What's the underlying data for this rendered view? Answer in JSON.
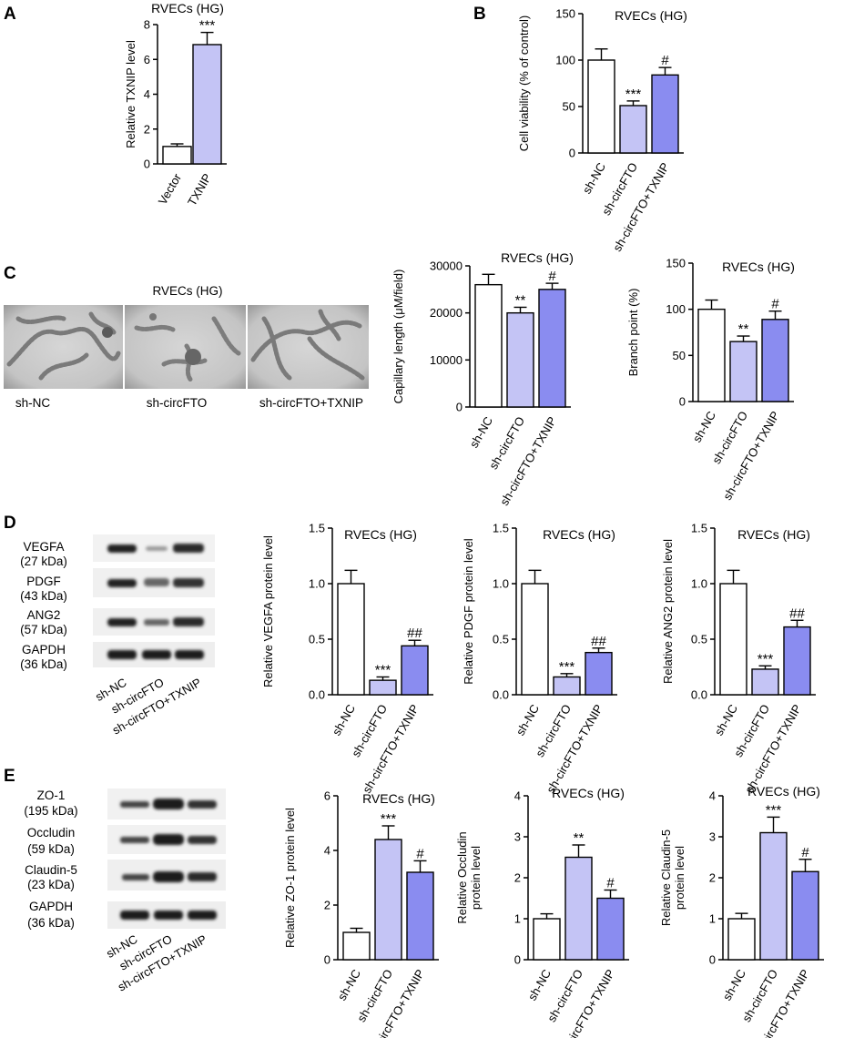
{
  "panel_labels": [
    "A",
    "B",
    "C",
    "D",
    "E"
  ],
  "colors": {
    "white_bar": "#ffffff",
    "light_bar": "#c4c4f5",
    "dark_bar": "#8a8cf0",
    "axis": "#000000"
  },
  "microscopy": {
    "title": "RVECs (HG)",
    "captions": [
      "sh-NC",
      "sh-circFTO",
      "sh-circFTO+TXNIP"
    ]
  },
  "blots": {
    "D": {
      "rows": [
        {
          "name": "VEGFA",
          "mw": "(27 kDa)"
        },
        {
          "name": "PDGF",
          "mw": "(43 kDa)"
        },
        {
          "name": "ANG2",
          "mw": "(57 kDa)"
        },
        {
          "name": "GAPDH",
          "mw": "(36 kDa)"
        }
      ],
      "lanes": [
        "sh-NC",
        "sh-circFTO",
        "sh-circFTO+TXNIP"
      ]
    },
    "E": {
      "rows": [
        {
          "name": "ZO-1",
          "mw": "(195 kDa)"
        },
        {
          "name": "Occludin",
          "mw": "(59 kDa)"
        },
        {
          "name": "Claudin-5",
          "mw": "(23 kDa)"
        },
        {
          "name": "GAPDH",
          "mw": "(36 kDa)"
        }
      ],
      "lanes": [
        "sh-NC",
        "sh-circFTO",
        "sh-circFTO+TXNIP"
      ]
    }
  },
  "chart_data": [
    {
      "id": "A",
      "type": "bar",
      "title": "RVECs (HG)",
      "ylabel": [
        "Relative TXNIP level"
      ],
      "categories": [
        "Vector",
        "TXNIP"
      ],
      "values": [
        1.0,
        6.85
      ],
      "errors": [
        0.15,
        0.7
      ],
      "sig": [
        "",
        "***"
      ],
      "ylim": [
        0,
        8
      ],
      "yticks": [
        "0",
        "2",
        "4",
        "6",
        "8"
      ],
      "grid": false
    },
    {
      "id": "B",
      "type": "bar",
      "title": "RVECs (HG)",
      "ylabel": [
        "Cell viability (% of control)"
      ],
      "categories": [
        "sh-NC",
        "sh-circFTO",
        "sh-circFTO+TXNIP"
      ],
      "values": [
        100,
        51,
        84
      ],
      "errors": [
        12,
        5,
        8
      ],
      "sig": [
        "",
        "***",
        "#"
      ],
      "ylim": [
        0,
        150
      ],
      "yticks": [
        "0",
        "50",
        "100",
        "150"
      ],
      "grid": false
    },
    {
      "id": "C1",
      "type": "bar",
      "title": "RVECs (HG)",
      "ylabel": [
        "Capillary length (μM/field)"
      ],
      "categories": [
        "sh-NC",
        "sh-circFTO",
        "sh-circFTO+TXNIP"
      ],
      "values": [
        26000,
        20000,
        25000
      ],
      "errors": [
        2200,
        1200,
        1300
      ],
      "sig": [
        "",
        "**",
        "#"
      ],
      "ylim": [
        0,
        30000
      ],
      "yticks": [
        "0",
        "10000",
        "20000",
        "30000"
      ],
      "grid": false
    },
    {
      "id": "C2",
      "type": "bar",
      "title": "RVECs (HG)",
      "ylabel": [
        "Branch point (%)"
      ],
      "categories": [
        "sh-NC",
        "sh-circFTO",
        "sh-circFTO+TXNIP"
      ],
      "values": [
        100,
        65,
        89
      ],
      "errors": [
        10,
        6,
        9
      ],
      "sig": [
        "",
        "**",
        "#"
      ],
      "ylim": [
        0,
        150
      ],
      "yticks": [
        "0",
        "50",
        "100",
        "150"
      ],
      "grid": false
    },
    {
      "id": "D1",
      "type": "bar",
      "title": "RVECs (HG)",
      "ylabel": [
        "Relative VEGFA protein level"
      ],
      "categories": [
        "sh-NC",
        "sh-circFTO",
        "sh-circFTO+TXNIP"
      ],
      "values": [
        1.0,
        0.13,
        0.44
      ],
      "errors": [
        0.12,
        0.03,
        0.05
      ],
      "sig": [
        "",
        "***",
        "##"
      ],
      "ylim": [
        0,
        1.5
      ],
      "yticks": [
        "0.0",
        "0.5",
        "1.0",
        "1.5"
      ],
      "grid": false
    },
    {
      "id": "D2",
      "type": "bar",
      "title": "RVECs (HG)",
      "ylabel": [
        "Relative PDGF protein level"
      ],
      "categories": [
        "sh-NC",
        "sh-circFTO",
        "sh-circFTO+TXNIP"
      ],
      "values": [
        1.0,
        0.16,
        0.38
      ],
      "errors": [
        0.12,
        0.03,
        0.04
      ],
      "sig": [
        "",
        "***",
        "##"
      ],
      "ylim": [
        0,
        1.5
      ],
      "yticks": [
        "0.0",
        "0.5",
        "1.0",
        "1.5"
      ],
      "grid": false
    },
    {
      "id": "D3",
      "type": "bar",
      "title": "RVECs (HG)",
      "ylabel": [
        "Relative ANG2 protein level"
      ],
      "categories": [
        "sh-NC",
        "sh-circFTO",
        "sh-circFTO+TXNIP"
      ],
      "values": [
        1.0,
        0.23,
        0.61
      ],
      "errors": [
        0.12,
        0.03,
        0.06
      ],
      "sig": [
        "",
        "***",
        "##"
      ],
      "ylim": [
        0,
        1.5
      ],
      "yticks": [
        "0.0",
        "0.5",
        "1.0",
        "1.5"
      ],
      "grid": false
    },
    {
      "id": "E1",
      "type": "bar",
      "title": "RVECs (HG)",
      "ylabel": [
        "Relative ZO-1 protein level"
      ],
      "categories": [
        "sh-NC",
        "sh-circFTO",
        "sh-circFTO+TXNIP"
      ],
      "values": [
        1.0,
        4.4,
        3.2
      ],
      "errors": [
        0.15,
        0.5,
        0.42
      ],
      "sig": [
        "",
        "***",
        "#"
      ],
      "ylim": [
        0,
        6
      ],
      "yticks": [
        "0",
        "2",
        "4",
        "6"
      ],
      "grid": false
    },
    {
      "id": "E2",
      "type": "bar",
      "title": "RVECs (HG)",
      "ylabel": [
        "Relative Occludin",
        "protein level"
      ],
      "categories": [
        "sh-NC",
        "sh-circFTO",
        "sh-circFTO+TXNIP"
      ],
      "values": [
        1.0,
        2.5,
        1.5
      ],
      "errors": [
        0.12,
        0.3,
        0.2
      ],
      "sig": [
        "",
        "**",
        "#"
      ],
      "ylim": [
        0,
        4
      ],
      "yticks": [
        "0",
        "1",
        "2",
        "3",
        "4"
      ],
      "grid": false
    },
    {
      "id": "E3",
      "type": "bar",
      "title": "RVECs (HG)",
      "ylabel": [
        "Relative Claudin-5",
        "protein level"
      ],
      "categories": [
        "sh-NC",
        "sh-circFTO",
        "sh-circFTO+TXNIP"
      ],
      "values": [
        1.0,
        3.1,
        2.15
      ],
      "errors": [
        0.13,
        0.38,
        0.3
      ],
      "sig": [
        "",
        "***",
        "#"
      ],
      "ylim": [
        0,
        4
      ],
      "yticks": [
        "0",
        "1",
        "2",
        "3",
        "4"
      ],
      "grid": false
    }
  ]
}
